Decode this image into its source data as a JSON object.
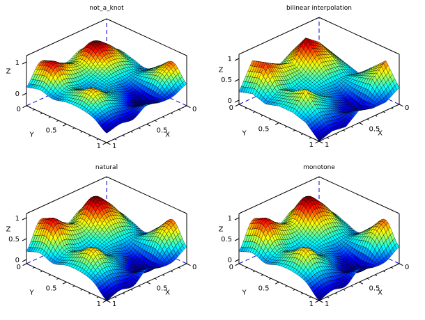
{
  "chart_data": [
    {
      "type": "surface",
      "title": "not_a_knot",
      "method": "cubic",
      "xlabel": "X",
      "ylabel": "Y",
      "zlabel": "Z",
      "x_ticks": [
        "0",
        "0.5",
        "1"
      ],
      "y_ticks": [
        "0",
        "0.5",
        "1"
      ],
      "z_ticks": [
        "0",
        "1"
      ],
      "z_tick_values": [
        0,
        1
      ],
      "zlim": [
        -0.4,
        1.2
      ]
    },
    {
      "type": "surface",
      "title": "bilinear interpolation",
      "method": "linear",
      "xlabel": "X",
      "ylabel": "Y",
      "zlabel": "Z",
      "x_ticks": [
        "0",
        "0.5",
        "1"
      ],
      "y_ticks": [
        "0",
        "0.5",
        "1"
      ],
      "z_ticks": [
        "0",
        "0.5",
        "1"
      ],
      "z_tick_values": [
        0,
        0.5,
        1
      ],
      "zlim": [
        -0.1,
        1.1
      ]
    },
    {
      "type": "surface",
      "title": "natural",
      "method": "cubic",
      "xlabel": "X",
      "ylabel": "Y",
      "zlabel": "Z",
      "x_ticks": [
        "0",
        "0.5",
        "1"
      ],
      "y_ticks": [
        "0",
        "0.5",
        "1"
      ],
      "z_ticks": [
        "0",
        "0.5",
        "1"
      ],
      "z_tick_values": [
        0,
        0.5,
        1
      ],
      "zlim": [
        -0.1,
        1.1
      ]
    },
    {
      "type": "surface",
      "title": "monotone",
      "method": "cubic",
      "xlabel": "X",
      "ylabel": "Y",
      "zlabel": "Z",
      "x_ticks": [
        "0",
        "0.5",
        "1"
      ],
      "y_ticks": [
        "0",
        "0.5",
        "1"
      ],
      "z_ticks": [
        "0",
        "0.5",
        "1"
      ],
      "z_tick_values": [
        0,
        0.5,
        1
      ],
      "zlim": [
        -0.1,
        1.1
      ]
    }
  ],
  "surface_z_grid": [
    [
      0.3,
      0.4,
      0.3,
      0.2,
      0.5,
      0.8,
      0.3
    ],
    [
      0.5,
      0.8,
      0.6,
      0.3,
      0.4,
      0.5,
      0.1
    ],
    [
      0.6,
      1.05,
      0.7,
      0.3,
      0.05,
      -0.1,
      0.1
    ],
    [
      0.4,
      0.6,
      0.4,
      0.3,
      0.2,
      0.0,
      0.2
    ],
    [
      0.6,
      0.7,
      0.3,
      0.2,
      0.4,
      0.2,
      -0.05
    ],
    [
      0.8,
      0.9,
      0.4,
      0.5,
      0.7,
      0.3,
      0.0
    ],
    [
      0.2,
      0.3,
      0.2,
      0.3,
      0.3,
      0.2,
      -0.1
    ]
  ],
  "colormap": "jet",
  "colors": {
    "axes": "#000000",
    "hidden_axes": "#0000cc",
    "mesh": "#000000"
  }
}
